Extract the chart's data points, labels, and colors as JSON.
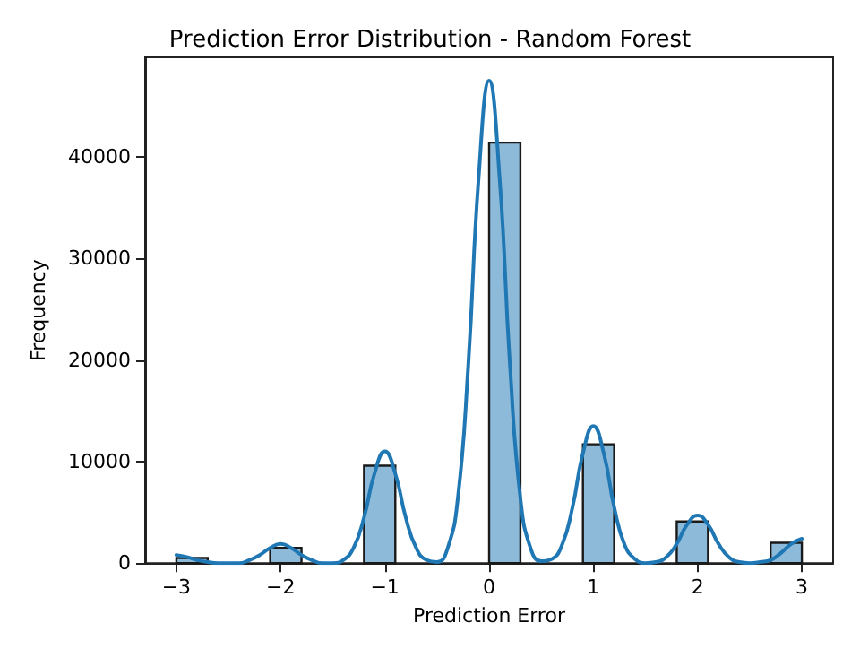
{
  "chart_data": {
    "type": "histogram",
    "title": "Prediction Error Distribution - Random Forest",
    "xlabel": "Prediction Error",
    "ylabel": "Frequency",
    "bins": [
      -3,
      -2.7,
      -2.4,
      -2.1,
      -1.8,
      -1.5,
      -1.2,
      -0.9,
      -0.6,
      -0.3,
      0,
      0.3,
      0.6,
      0.9,
      1.2,
      1.5,
      1.8,
      2.1,
      2.4,
      2.7,
      3
    ],
    "values": [
      500,
      0,
      0,
      1500,
      0,
      0,
      9600,
      0,
      0,
      0,
      41400,
      0,
      0,
      11700,
      0,
      0,
      4100,
      0,
      0,
      2000
    ],
    "color": "#8ebad9",
    "series": [
      {
        "type": "line",
        "color": "#1f77b4",
        "x": [
          -3,
          -2.9,
          -2.8,
          -2.7,
          -2.6,
          -2.5,
          -2.4,
          -2.3,
          -2.2,
          -2.1,
          -2,
          -1.9,
          -1.8,
          -1.7,
          -1.6,
          -1.5,
          -1.4,
          -1.3,
          -1.2,
          -1.1,
          -1,
          -0.9,
          -0.8,
          -0.7,
          -0.6,
          -0.5,
          -0.4,
          -0.3,
          -0.2,
          -0.1,
          0,
          0.1,
          0.2,
          0.3,
          0.4,
          0.5,
          0.6,
          0.7,
          0.8,
          0.9,
          1,
          1.1,
          1.2,
          1.3,
          1.4,
          1.5,
          1.6,
          1.7,
          1.8,
          1.9,
          2,
          2.1,
          2.2,
          2.3,
          2.4,
          2.5,
          2.6,
          2.7,
          2.8,
          2.9,
          3
        ],
        "values": [
          800,
          600,
          300,
          100,
          0,
          0,
          0,
          300,
          800,
          1500,
          1900,
          1500,
          800,
          300,
          0,
          0,
          300,
          1500,
          4500,
          8800,
          11000,
          8800,
          4500,
          1500,
          300,
          100,
          1400,
          6400,
          19500,
          38000,
          47500,
          38000,
          19500,
          6400,
          1400,
          200,
          400,
          1800,
          5500,
          10800,
          13500,
          10800,
          5500,
          1800,
          400,
          0,
          100,
          600,
          1900,
          3800,
          4700,
          3800,
          1900,
          600,
          100,
          0,
          100,
          300,
          1000,
          1900,
          2400
        ]
      }
    ],
    "xlim": [
      -3.3,
      3.3
    ],
    "xticks": [
      {
        "value": -3,
        "label": "−3"
      },
      {
        "value": -2,
        "label": "−2"
      },
      {
        "value": -1,
        "label": "−1"
      },
      0,
      1,
      2,
      3
    ],
    "ylim": [
      0,
      49800
    ],
    "yticks": [
      0,
      10000,
      20000,
      30000,
      40000
    ],
    "grid": false,
    "marker": "none",
    "line_style": "solid"
  }
}
